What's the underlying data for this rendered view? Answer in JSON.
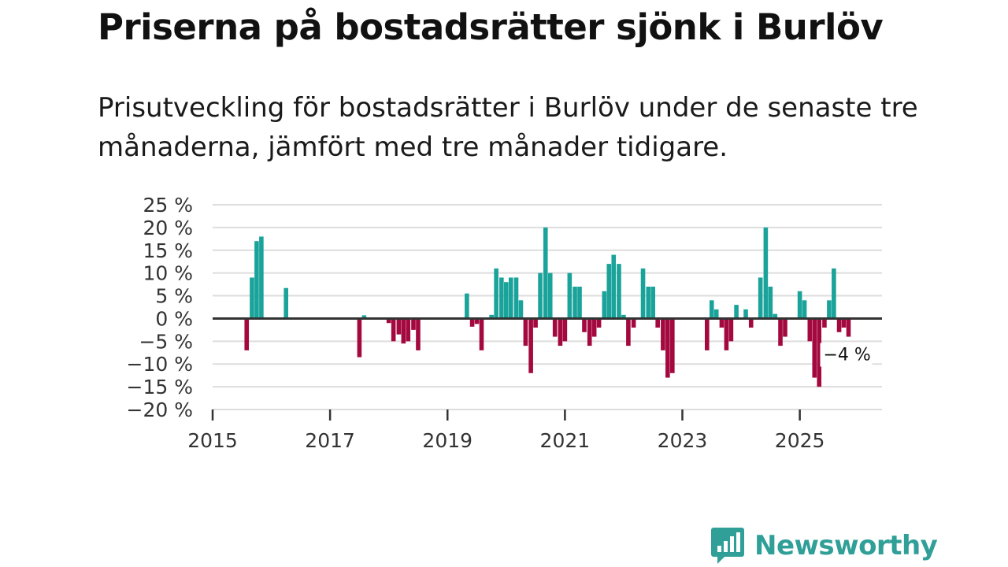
{
  "header": {
    "title": "Priserna på bostadsrätter sjönk i Burlöv",
    "subtitle": "Prisutveckling för bostadsrätter i Burlöv under de senaste tre månaderna, jämfört med tre månader tidigare."
  },
  "logo": {
    "name": "Newsworthy"
  },
  "colors": {
    "positive": "#1aa39a",
    "negative": "#a3093f",
    "grid": "#dddddd",
    "zero_line": "#333333"
  },
  "chart_data": {
    "type": "bar",
    "title": "Priserna på bostadsrätter sjönk i Burlöv",
    "xlabel": "",
    "ylabel": "",
    "ylim": [
      -20,
      25
    ],
    "xlim": [
      2015.0,
      2026.4
    ],
    "y_ticks": [
      {
        "value": 25,
        "label": "25 %"
      },
      {
        "value": 20,
        "label": "20 %"
      },
      {
        "value": 15,
        "label": "15 %"
      },
      {
        "value": 10,
        "label": "10 %"
      },
      {
        "value": 5,
        "label": "5 %"
      },
      {
        "value": 0,
        "label": "0 %"
      },
      {
        "value": -5,
        "label": "−5 %"
      },
      {
        "value": -10,
        "label": "−10 %"
      },
      {
        "value": -15,
        "label": "−15 %"
      },
      {
        "value": -20,
        "label": "−20 %"
      }
    ],
    "x_ticks": [
      {
        "value": 2015,
        "label": "2015"
      },
      {
        "value": 2017,
        "label": "2017"
      },
      {
        "value": 2019,
        "label": "2019"
      },
      {
        "value": 2021,
        "label": "2021"
      },
      {
        "value": 2023,
        "label": "2023"
      },
      {
        "value": 2025,
        "label": "2025"
      }
    ],
    "end_label": "−4 %",
    "series": [
      {
        "name": "Prisutveckling",
        "points": [
          {
            "x": 2015.58,
            "y": -7
          },
          {
            "x": 2015.67,
            "y": 9
          },
          {
            "x": 2015.75,
            "y": 17
          },
          {
            "x": 2015.83,
            "y": 18
          },
          {
            "x": 2016.25,
            "y": 6.7
          },
          {
            "x": 2017.5,
            "y": -8.5
          },
          {
            "x": 2017.58,
            "y": 0.7
          },
          {
            "x": 2018.0,
            "y": -1
          },
          {
            "x": 2018.08,
            "y": -5
          },
          {
            "x": 2018.17,
            "y": -3.5
          },
          {
            "x": 2018.25,
            "y": -5.5
          },
          {
            "x": 2018.33,
            "y": -5
          },
          {
            "x": 2018.42,
            "y": -2.5
          },
          {
            "x": 2018.5,
            "y": -7
          },
          {
            "x": 2019.33,
            "y": 5.5
          },
          {
            "x": 2019.42,
            "y": -1.8
          },
          {
            "x": 2019.5,
            "y": -1.2
          },
          {
            "x": 2019.58,
            "y": -7
          },
          {
            "x": 2019.75,
            "y": 0.8
          },
          {
            "x": 2019.83,
            "y": 11
          },
          {
            "x": 2019.92,
            "y": 9
          },
          {
            "x": 2020.0,
            "y": 8
          },
          {
            "x": 2020.08,
            "y": 9
          },
          {
            "x": 2020.17,
            "y": 9
          },
          {
            "x": 2020.25,
            "y": 4
          },
          {
            "x": 2020.33,
            "y": -6
          },
          {
            "x": 2020.42,
            "y": -12
          },
          {
            "x": 2020.5,
            "y": -2
          },
          {
            "x": 2020.58,
            "y": 10
          },
          {
            "x": 2020.67,
            "y": 20
          },
          {
            "x": 2020.75,
            "y": 10
          },
          {
            "x": 2020.83,
            "y": -4
          },
          {
            "x": 2020.92,
            "y": -6
          },
          {
            "x": 2021.0,
            "y": -5
          },
          {
            "x": 2021.08,
            "y": 10
          },
          {
            "x": 2021.17,
            "y": 7
          },
          {
            "x": 2021.25,
            "y": 7
          },
          {
            "x": 2021.33,
            "y": -3
          },
          {
            "x": 2021.42,
            "y": -6
          },
          {
            "x": 2021.5,
            "y": -4
          },
          {
            "x": 2021.58,
            "y": -2
          },
          {
            "x": 2021.67,
            "y": 6
          },
          {
            "x": 2021.75,
            "y": 12
          },
          {
            "x": 2021.83,
            "y": 14
          },
          {
            "x": 2021.92,
            "y": 12
          },
          {
            "x": 2022.0,
            "y": 0.8
          },
          {
            "x": 2022.08,
            "y": -6
          },
          {
            "x": 2022.17,
            "y": -2
          },
          {
            "x": 2022.33,
            "y": 11
          },
          {
            "x": 2022.42,
            "y": 7
          },
          {
            "x": 2022.5,
            "y": 7
          },
          {
            "x": 2022.58,
            "y": -2
          },
          {
            "x": 2022.67,
            "y": -7
          },
          {
            "x": 2022.75,
            "y": -13
          },
          {
            "x": 2022.83,
            "y": -12
          },
          {
            "x": 2023.42,
            "y": -7
          },
          {
            "x": 2023.5,
            "y": 4
          },
          {
            "x": 2023.58,
            "y": 2
          },
          {
            "x": 2023.67,
            "y": -2
          },
          {
            "x": 2023.75,
            "y": -7
          },
          {
            "x": 2023.83,
            "y": -5
          },
          {
            "x": 2023.92,
            "y": 3
          },
          {
            "x": 2024.08,
            "y": 2
          },
          {
            "x": 2024.17,
            "y": -2
          },
          {
            "x": 2024.33,
            "y": 9
          },
          {
            "x": 2024.42,
            "y": 20
          },
          {
            "x": 2024.5,
            "y": 7
          },
          {
            "x": 2024.58,
            "y": 1
          },
          {
            "x": 2024.67,
            "y": -6
          },
          {
            "x": 2024.75,
            "y": -4
          },
          {
            "x": 2025.0,
            "y": 6
          },
          {
            "x": 2025.08,
            "y": 4
          },
          {
            "x": 2025.17,
            "y": -5
          },
          {
            "x": 2025.25,
            "y": -13
          },
          {
            "x": 2025.33,
            "y": -15
          },
          {
            "x": 2025.42,
            "y": -2
          },
          {
            "x": 2025.5,
            "y": 4
          },
          {
            "x": 2025.58,
            "y": 11
          },
          {
            "x": 2025.67,
            "y": -3
          },
          {
            "x": 2025.75,
            "y": -2
          },
          {
            "x": 2025.83,
            "y": -4
          }
        ]
      }
    ]
  }
}
